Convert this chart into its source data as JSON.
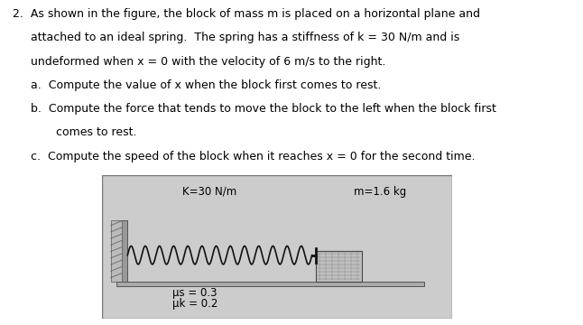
{
  "label_k": "K=30 N/m",
  "label_m": "m=1.6 kg",
  "label_us": "μs = 0.3",
  "label_uk": "μk = 0.2",
  "wall_color": "#aaaaaa",
  "floor_color": "#aaaaaa",
  "block_color": "#b8b8b8",
  "spring_color": "#111111",
  "figure_bg": "#cccccc",
  "text_color": "#000000",
  "font_size_main": 9.0,
  "font_size_label": 8.5,
  "line1": "2.  As shown in the figure, the block of mass m is placed on a horizontal plane and",
  "line2": "     attached to an ideal spring.  The spring has a stiffness of k = 30 N/m and is",
  "line3": "     undeformed when x = 0 with the velocity of 6 m/s to the right.",
  "line4": "     a.  Compute the value of x when the block first comes to rest.",
  "line5": "     b.  Compute the force that tends to move the block to the left when the block first",
  "line6": "            comes to rest.",
  "line7": "     c.  Compute the speed of the block when it reaches x = 0 for the second time."
}
